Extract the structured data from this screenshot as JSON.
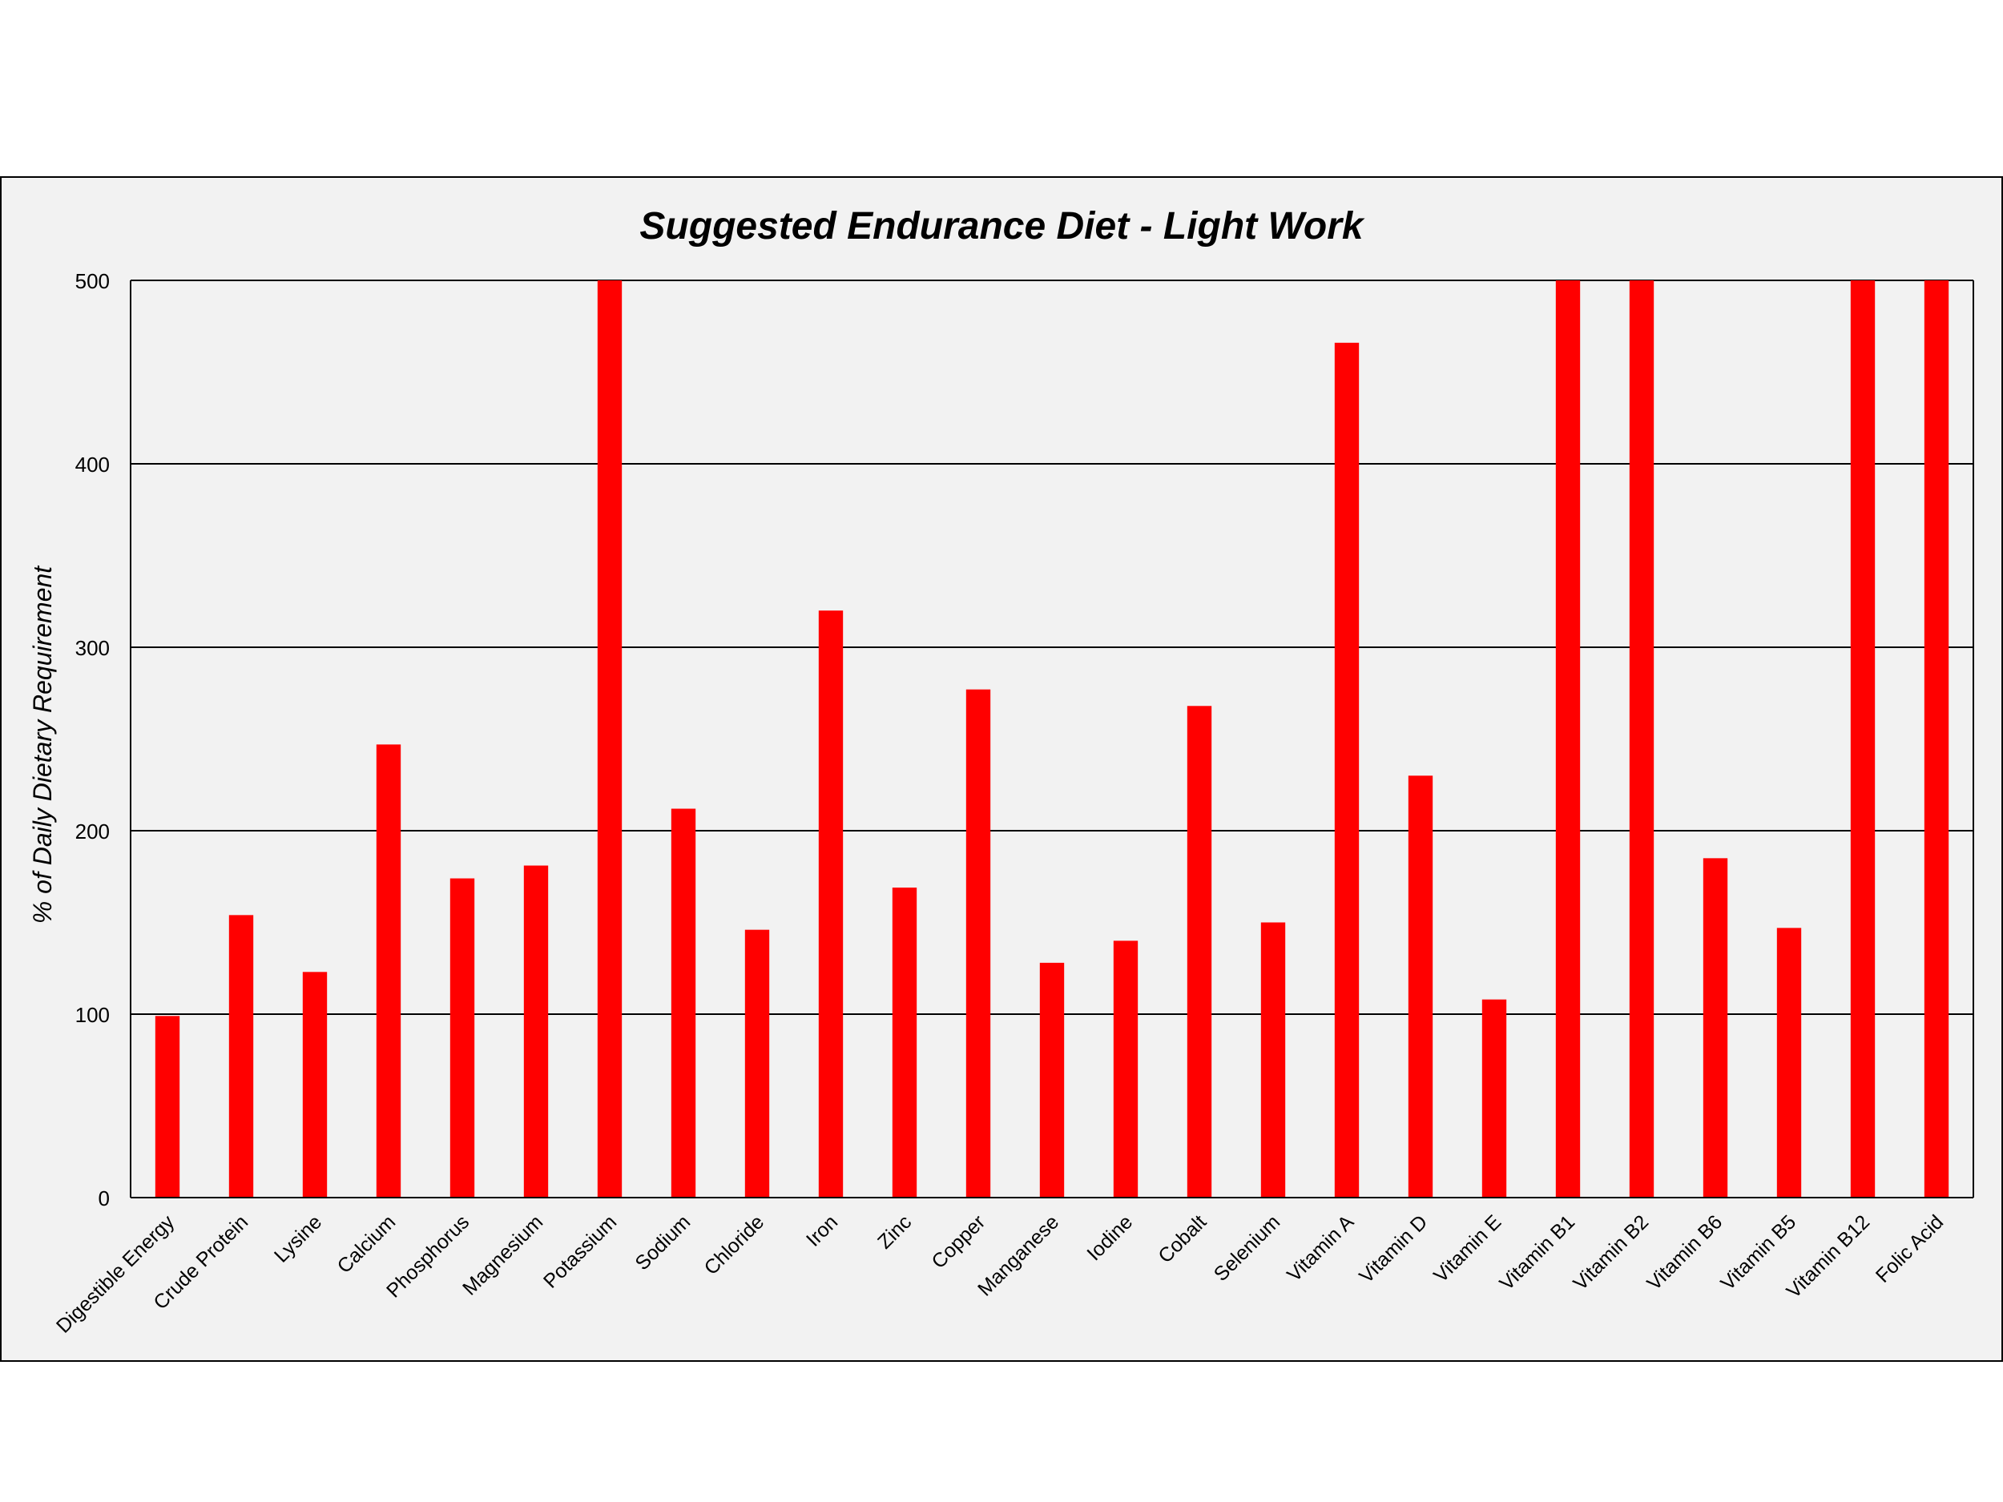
{
  "chart_data": {
    "type": "bar",
    "title": "Suggested Endurance Diet - Light Work",
    "xlabel": "",
    "ylabel": "% of Daily Dietary Requirement",
    "ylim": [
      0,
      500
    ],
    "yticks": [
      0,
      100,
      200,
      300,
      400,
      500
    ],
    "grid": true,
    "legend": "none",
    "bar_color": "#ff0000",
    "background_color": "#f2f2f2",
    "categories": [
      "Digestible Energy",
      "Crude Protein",
      "Lysine",
      "Calcium",
      "Phosphorus",
      "Magnesium",
      "Potassium",
      "Sodium",
      "Chloride",
      "Iron",
      "Zinc",
      "Copper",
      "Manganese",
      "Iodine",
      "Cobalt",
      "Selenium",
      "Vitamin A",
      "Vitamin D",
      "Vitamin E",
      "Vitamin B1",
      "Vitamin B2",
      "Vitamin B6",
      "Vitamin B5",
      "Vitamin B12",
      "Folic Acid"
    ],
    "values": [
      99,
      154,
      123,
      247,
      174,
      181,
      500,
      212,
      146,
      320,
      169,
      277,
      128,
      140,
      268,
      150,
      466,
      230,
      108,
      500,
      500,
      185,
      147,
      500,
      500
    ]
  }
}
